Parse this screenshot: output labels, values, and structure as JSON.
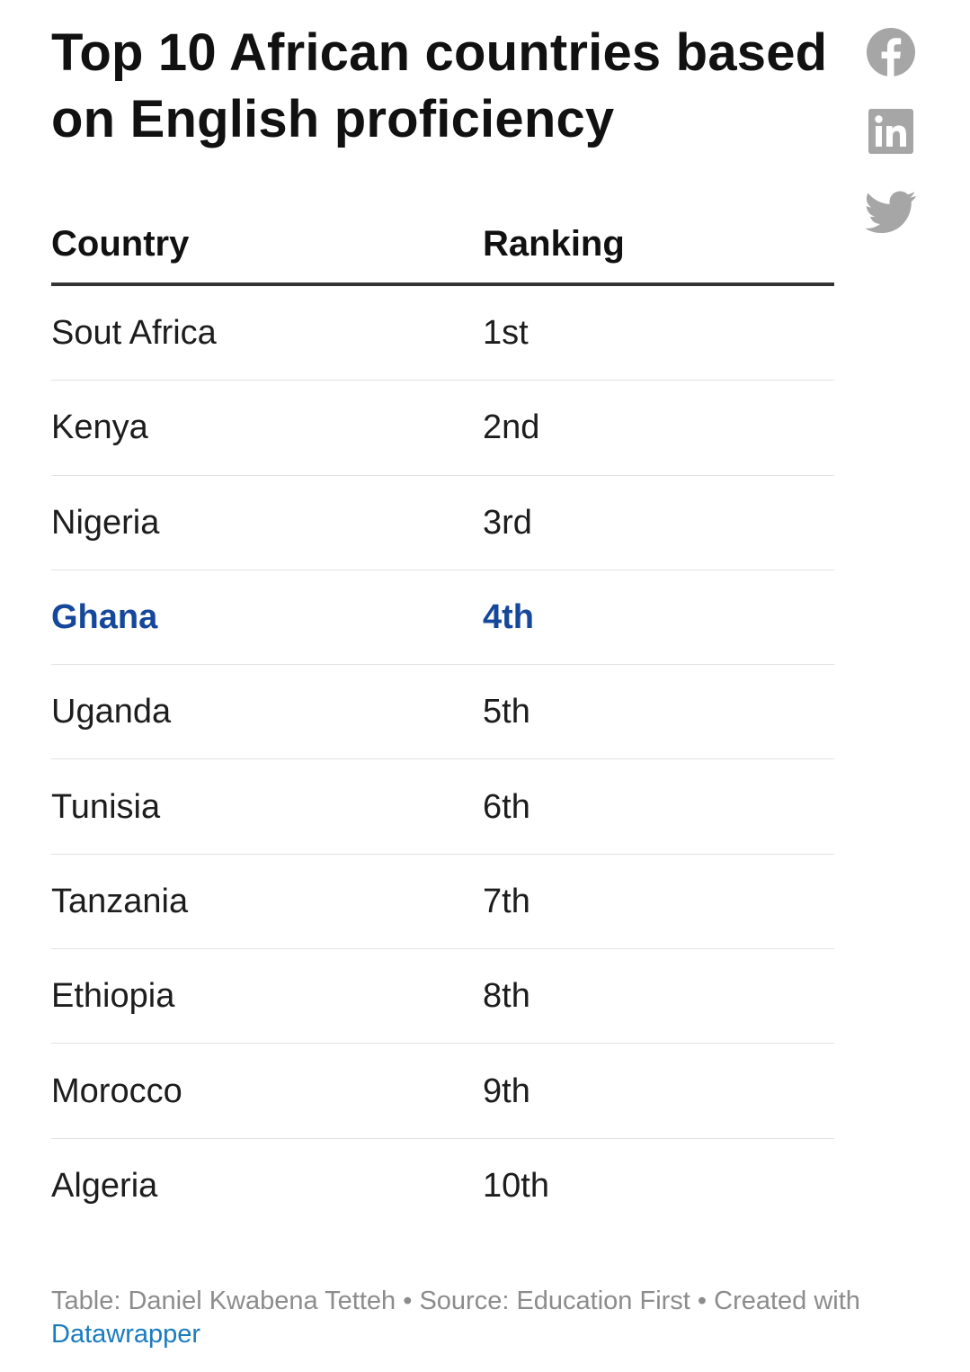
{
  "title": "Top 10 African countries based on English proficiency",
  "icons": {
    "facebook": "facebook-icon",
    "linkedin": "linkedin-icon",
    "twitter": "twitter-icon",
    "icon_color": "#a6a6a6"
  },
  "chart_data": {
    "type": "table",
    "columns": [
      "Country",
      "Ranking"
    ],
    "rows": [
      [
        "Sout Africa",
        "1st"
      ],
      [
        "Kenya",
        "2nd"
      ],
      [
        "Nigeria",
        "3rd"
      ],
      [
        "Ghana",
        "4th"
      ],
      [
        "Uganda",
        "5th"
      ],
      [
        "Tunisia",
        "6th"
      ],
      [
        "Tanzania",
        "7th"
      ],
      [
        "Ethiopia",
        "8th"
      ],
      [
        "Morocco",
        "9th"
      ],
      [
        "Algeria",
        "10th"
      ]
    ],
    "highlighted_row": "Ghana",
    "highlight_color": "#15479a"
  },
  "footer": {
    "credit": "Table: Daniel Kwabena Tetteh • Source: Education First • Created with",
    "link_text": "Datawrapper"
  }
}
